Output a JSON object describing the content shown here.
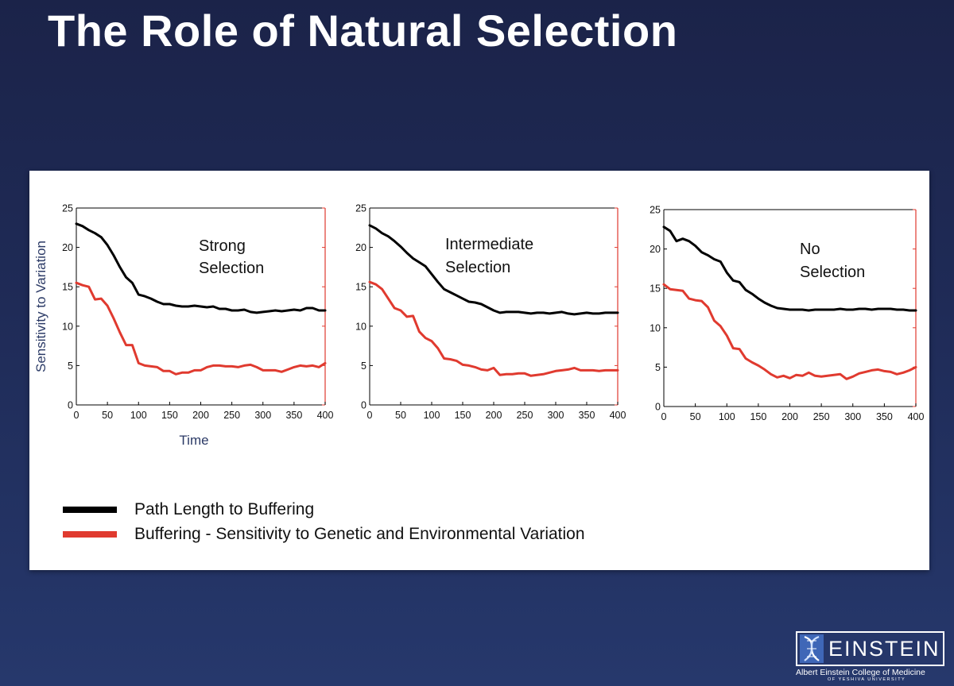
{
  "slide": {
    "title": "The Role of Natural Selection"
  },
  "colors": {
    "path_length": "#000000",
    "buffering": "#e03a2f",
    "ylabel_color": "#2b3a66"
  },
  "legend": [
    {
      "label": "Path Length to Buffering",
      "color": "#000000"
    },
    {
      "label": "Buffering - Sensitivity to Genetic and Environmental Variation",
      "color": "#e03a2f"
    }
  ],
  "chart_data": [
    {
      "type": "line",
      "annotation": [
        "Strong",
        "Selection"
      ],
      "ylabel": "Sensitivity to Variation",
      "xlabel": "Time",
      "xlim": [
        0,
        400
      ],
      "ylim": [
        0,
        25
      ],
      "xticks": [
        0,
        50,
        100,
        150,
        200,
        250,
        300,
        350,
        400
      ],
      "yticks": [
        0,
        5,
        10,
        15,
        20,
        25
      ],
      "x": [
        0,
        10,
        20,
        30,
        40,
        50,
        60,
        70,
        80,
        90,
        100,
        110,
        120,
        130,
        140,
        150,
        160,
        170,
        180,
        190,
        200,
        210,
        220,
        230,
        240,
        250,
        260,
        270,
        280,
        290,
        300,
        310,
        320,
        330,
        340,
        350,
        360,
        370,
        380,
        390,
        400
      ],
      "series": [
        {
          "name": "Path Length to Buffering",
          "color": "#000000",
          "values": [
            23.0,
            22.7,
            22.2,
            21.8,
            21.3,
            20.3,
            19.0,
            17.5,
            16.2,
            15.5,
            14.0,
            13.8,
            13.5,
            13.1,
            12.8,
            12.8,
            12.6,
            12.5,
            12.5,
            12.6,
            12.5,
            12.4,
            12.5,
            12.2,
            12.2,
            12.0,
            12.0,
            12.1,
            11.8,
            11.7,
            11.8,
            11.9,
            12.0,
            11.9,
            12.0,
            12.1,
            12.0,
            12.3,
            12.3,
            12.0,
            12.0
          ]
        },
        {
          "name": "Buffering - Sensitivity to Genetic and Environmental Variation",
          "color": "#e03a2f",
          "values": [
            15.5,
            15.2,
            15.0,
            13.4,
            13.5,
            12.6,
            11.0,
            9.2,
            7.6,
            7.6,
            5.3,
            5.0,
            4.9,
            4.8,
            4.3,
            4.3,
            3.9,
            4.1,
            4.1,
            4.4,
            4.4,
            4.8,
            5.0,
            5.0,
            4.9,
            4.9,
            4.8,
            5.0,
            5.1,
            4.8,
            4.4,
            4.4,
            4.4,
            4.2,
            4.5,
            4.8,
            5.0,
            4.9,
            5.0,
            4.8,
            5.3
          ]
        }
      ]
    },
    {
      "type": "line",
      "annotation": [
        "Intermediate",
        "Selection"
      ],
      "xlim": [
        0,
        400
      ],
      "ylim": [
        0,
        25
      ],
      "xticks": [
        0,
        50,
        100,
        150,
        200,
        250,
        300,
        350,
        400
      ],
      "yticks": [
        0,
        5,
        10,
        15,
        20,
        25
      ],
      "x": [
        0,
        10,
        20,
        30,
        40,
        50,
        60,
        70,
        80,
        90,
        100,
        110,
        120,
        130,
        140,
        150,
        160,
        170,
        180,
        190,
        200,
        210,
        220,
        230,
        240,
        250,
        260,
        270,
        280,
        290,
        300,
        310,
        320,
        330,
        340,
        350,
        360,
        370,
        380,
        390,
        400
      ],
      "series": [
        {
          "name": "Path Length to Buffering",
          "color": "#000000",
          "values": [
            22.8,
            22.4,
            21.8,
            21.4,
            20.8,
            20.1,
            19.3,
            18.6,
            18.1,
            17.6,
            16.6,
            15.6,
            14.7,
            14.3,
            13.9,
            13.5,
            13.1,
            13.0,
            12.8,
            12.4,
            12.0,
            11.7,
            11.8,
            11.8,
            11.8,
            11.7,
            11.6,
            11.7,
            11.7,
            11.6,
            11.7,
            11.8,
            11.6,
            11.5,
            11.6,
            11.7,
            11.6,
            11.6,
            11.7,
            11.7,
            11.7
          ]
        },
        {
          "name": "Buffering - Sensitivity to Genetic and Environmental Variation",
          "color": "#e03a2f",
          "values": [
            15.6,
            15.3,
            14.7,
            13.5,
            12.3,
            12.0,
            11.2,
            11.3,
            9.3,
            8.5,
            8.1,
            7.2,
            5.9,
            5.8,
            5.6,
            5.1,
            5.0,
            4.8,
            4.5,
            4.4,
            4.7,
            3.8,
            3.9,
            3.9,
            4.0,
            4.0,
            3.7,
            3.8,
            3.9,
            4.1,
            4.3,
            4.4,
            4.5,
            4.7,
            4.4,
            4.4,
            4.4,
            4.3,
            4.4,
            4.4,
            4.4
          ]
        }
      ]
    },
    {
      "type": "line",
      "annotation": [
        "No",
        "Selection"
      ],
      "xlim": [
        0,
        400
      ],
      "ylim": [
        0,
        25
      ],
      "xticks": [
        0,
        50,
        100,
        150,
        200,
        250,
        300,
        350,
        400
      ],
      "yticks": [
        0,
        5,
        10,
        15,
        20,
        25
      ],
      "x": [
        0,
        10,
        20,
        30,
        40,
        50,
        60,
        70,
        80,
        90,
        100,
        110,
        120,
        130,
        140,
        150,
        160,
        170,
        180,
        190,
        200,
        210,
        220,
        230,
        240,
        250,
        260,
        270,
        280,
        290,
        300,
        310,
        320,
        330,
        340,
        350,
        360,
        370,
        380,
        390,
        400
      ],
      "series": [
        {
          "name": "Path Length to Buffering",
          "color": "#000000",
          "values": [
            22.8,
            22.3,
            21.0,
            21.3,
            21.0,
            20.4,
            19.6,
            19.2,
            18.7,
            18.4,
            17.0,
            16.0,
            15.8,
            14.8,
            14.3,
            13.7,
            13.2,
            12.8,
            12.5,
            12.4,
            12.3,
            12.3,
            12.3,
            12.2,
            12.3,
            12.3,
            12.3,
            12.3,
            12.4,
            12.3,
            12.3,
            12.4,
            12.4,
            12.3,
            12.4,
            12.4,
            12.4,
            12.3,
            12.3,
            12.2,
            12.2
          ]
        },
        {
          "name": "Buffering - Sensitivity to Genetic and Environmental Variation",
          "color": "#e03a2f",
          "values": [
            15.5,
            14.9,
            14.8,
            14.7,
            13.7,
            13.5,
            13.4,
            12.6,
            10.9,
            10.2,
            9.0,
            7.4,
            7.3,
            6.1,
            5.6,
            5.2,
            4.7,
            4.1,
            3.7,
            3.9,
            3.6,
            4.0,
            3.9,
            4.3,
            3.9,
            3.8,
            3.9,
            4.0,
            4.1,
            3.5,
            3.8,
            4.2,
            4.4,
            4.6,
            4.7,
            4.5,
            4.4,
            4.1,
            4.3,
            4.6,
            5.0
          ]
        }
      ]
    }
  ],
  "logo": {
    "wordmark": "EINSTEIN",
    "line1": "Albert Einstein College of Medicine",
    "line2": "OF YESHIVA UNIVERSITY"
  }
}
